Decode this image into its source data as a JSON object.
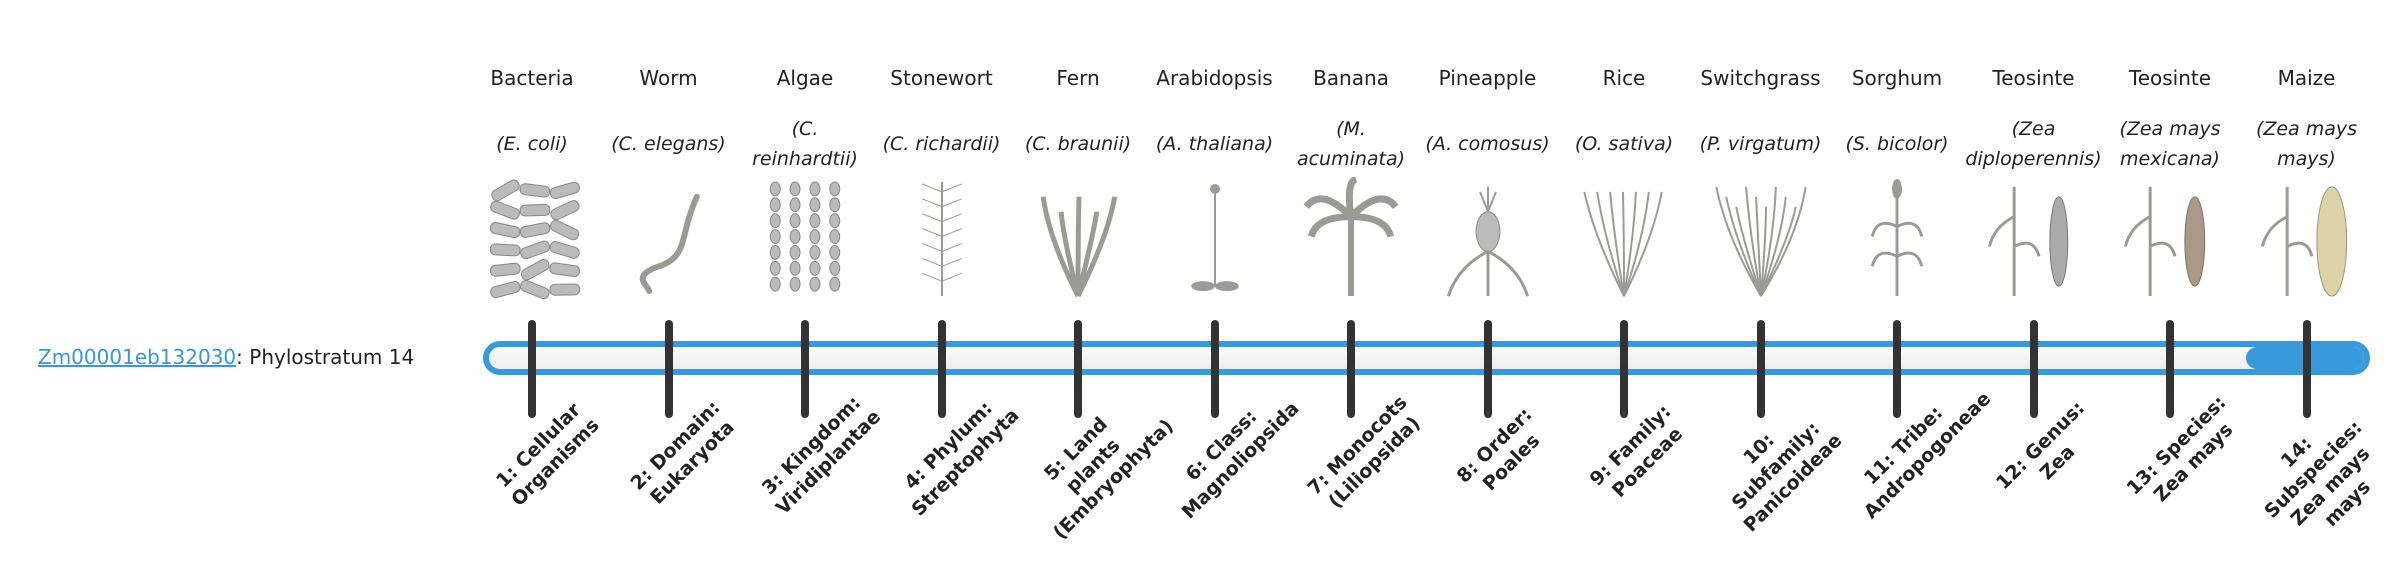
{
  "gene": {
    "id": "Zm00001eb132030",
    "suffix": ": Phylostratum 14",
    "phylostratum": 14
  },
  "colors": {
    "accent": "#3899db",
    "tick": "#333333"
  },
  "organisms": [
    {
      "name": "Bacteria",
      "sci": "(E. coli)",
      "icon": "bacteria-icon",
      "stratum": "1: Cellular Organisms"
    },
    {
      "name": "Worm",
      "sci": "(C. elegans)",
      "icon": "worm-icon",
      "stratum": "2: Domain: Eukaryota"
    },
    {
      "name": "Algae",
      "sci": "(C. reinhardtii)",
      "icon": "algae-icon",
      "stratum": "3: Kingdom: Viridiplantae"
    },
    {
      "name": "Stonewort",
      "sci": "(C. richardii)",
      "icon": "stonewort-icon",
      "stratum": "4: Phylum: Streptophyta"
    },
    {
      "name": "Fern",
      "sci": "(C. braunii)",
      "icon": "fern-icon",
      "stratum": "5: Land plants (Embryophyta)"
    },
    {
      "name": "Arabidopsis",
      "sci": "(A. thaliana)",
      "icon": "arabidopsis-icon",
      "stratum": "6: Class: Magnoliopsida"
    },
    {
      "name": "Banana",
      "sci": "(M. acuminata)",
      "icon": "banana-icon",
      "stratum": "7: Monocots (Liliopsida)"
    },
    {
      "name": "Pineapple",
      "sci": "(A. comosus)",
      "icon": "pineapple-icon",
      "stratum": "8: Order: Poales"
    },
    {
      "name": "Rice",
      "sci": "(O. sativa)",
      "icon": "rice-icon",
      "stratum": "9: Family: Poaceae"
    },
    {
      "name": "Switchgrass",
      "sci": "(P. virgatum)",
      "icon": "switchgrass-icon",
      "stratum": "10: Subfamily: Panicoideae"
    },
    {
      "name": "Sorghum",
      "sci": "(S. bicolor)",
      "icon": "sorghum-icon",
      "stratum": "11: Tribe: Andropogoneae"
    },
    {
      "name": "Teosinte",
      "sci": "(Zea diploperennis)",
      "icon": "teosinte-icon",
      "stratum": "12: Genus: Zea"
    },
    {
      "name": "Teosinte",
      "sci": "(Zea mays mexicana)",
      "icon": "teosinte-icon",
      "stratum": "13: Species: Zea mays"
    },
    {
      "name": "Maize",
      "sci": "(Zea mays mays)",
      "icon": "maize-icon",
      "stratum": "14: Subspecies: Zea mays mays"
    }
  ]
}
